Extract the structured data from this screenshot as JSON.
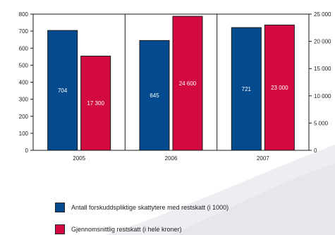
{
  "chart_data": {
    "type": "bar",
    "categories": [
      "2005",
      "2006",
      "2007"
    ],
    "series": [
      {
        "name": "Antall forskuddspliktige skattytere med restskatt (i 1000)",
        "axis": "left",
        "values": [
          704,
          645,
          721
        ],
        "labels": [
          "704",
          "645",
          "721"
        ],
        "color": "#034a8f"
      },
      {
        "name": "Gjennomsnittlig restskatt (i hele kroner)",
        "axis": "right",
        "values": [
          17300,
          24600,
          23000
        ],
        "labels": [
          "17 300",
          "24 600",
          "23 000"
        ],
        "color": "#d20a3f"
      }
    ],
    "left_axis": {
      "ylim": [
        0,
        800
      ],
      "ticks": [
        0,
        100,
        200,
        300,
        400,
        500,
        600,
        700,
        800
      ],
      "tick_labels": [
        "0",
        "100",
        "200",
        "300",
        "400",
        "500",
        "600",
        "700",
        "800"
      ]
    },
    "right_axis": {
      "ylim": [
        0,
        25000
      ],
      "ticks": [
        0,
        5000,
        10000,
        15000,
        20000,
        25000
      ],
      "tick_labels": [
        "0",
        "5 000",
        "10 000",
        "15 000",
        "20 000",
        "25 000"
      ]
    },
    "title": "",
    "xlabel": "",
    "ylabel": "",
    "grid": "vertical category separators",
    "legend_position": "bottom"
  },
  "colors": {
    "series_left": "#034a8f",
    "series_right": "#d20a3f",
    "background_wave": "#eeeef2"
  }
}
